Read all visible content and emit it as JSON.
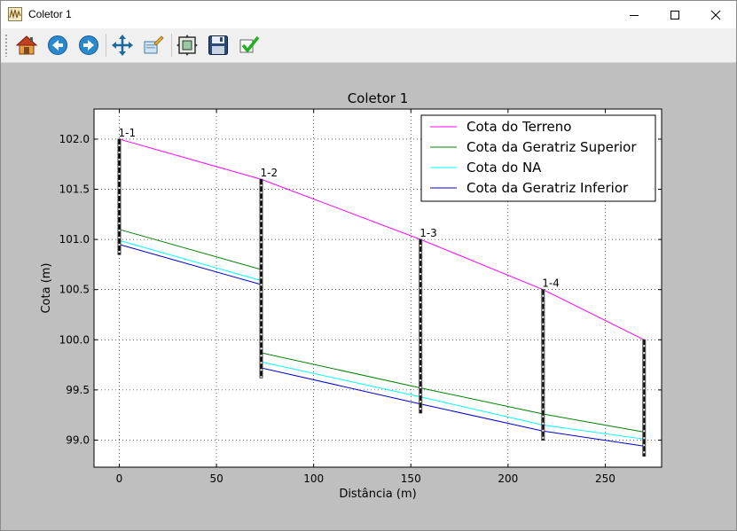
{
  "window": {
    "title": "Coletor 1",
    "icon": "chart-app-icon",
    "controls": [
      "minimize-icon",
      "maximize-icon",
      "close-icon"
    ]
  },
  "toolbar": {
    "buttons": [
      {
        "name": "home-button",
        "icon": "home-icon"
      },
      {
        "name": "back-button",
        "icon": "back-arrow-icon"
      },
      {
        "name": "forward-button",
        "icon": "forward-arrow-icon"
      },
      {
        "name": "pan-button",
        "icon": "pan-move-icon"
      },
      {
        "name": "zoom-button",
        "icon": "zoom-rectangle-icon"
      },
      {
        "name": "configure-subplots-button",
        "icon": "subplots-icon"
      },
      {
        "name": "save-button",
        "icon": "save-disk-icon"
      },
      {
        "name": "edit-parameters-button",
        "icon": "checkmark-icon"
      }
    ]
  },
  "colors": {
    "terreno": "#ff00ff",
    "geratriz_superior": "#008000",
    "na": "#00ffff",
    "geratriz_inferior": "#0000cc",
    "background": "#bfbfbf"
  },
  "chart_data": {
    "type": "line",
    "title": "Coletor 1",
    "xlabel": "Distância (m)",
    "ylabel": "Cota (m)",
    "xlim": [
      -13,
      279
    ],
    "ylim": [
      98.73,
      102.3
    ],
    "xticks": [
      0,
      50,
      100,
      150,
      200,
      250
    ],
    "xtick_labels": [
      "0",
      "50",
      "100",
      "150",
      "200",
      "250"
    ],
    "yticks": [
      99.0,
      99.5,
      100.0,
      100.5,
      101.0,
      101.5,
      102.0
    ],
    "ytick_labels": [
      "99.0",
      "99.5",
      "100.0",
      "100.5",
      "101.0",
      "101.5",
      "102.0"
    ],
    "grid": true,
    "legend_position": "top-right",
    "series": [
      {
        "name": "Cota do Terreno",
        "color": "#ff00ff",
        "points": [
          [
            0,
            102.0
          ],
          [
            73,
            101.6
          ],
          [
            155,
            101.0
          ],
          [
            218,
            100.5
          ],
          [
            270,
            100.0
          ]
        ]
      },
      {
        "name": "Cota da Geratriz Superior",
        "color": "#008000",
        "points": [
          [
            0,
            101.1
          ],
          [
            73,
            100.7
          ],
          [
            73,
            99.87
          ],
          [
            155,
            99.52
          ],
          [
            218,
            99.26
          ],
          [
            270,
            99.08
          ]
        ]
      },
      {
        "name": "Cota do NA",
        "color": "#00ffff",
        "points": [
          [
            0,
            100.99
          ],
          [
            73,
            100.59
          ],
          [
            73,
            99.78
          ],
          [
            155,
            99.43
          ],
          [
            218,
            99.15
          ],
          [
            270,
            99.01
          ]
        ]
      },
      {
        "name": "Cota da Geratriz Inferior",
        "color": "#0000cc",
        "points": [
          [
            0,
            100.95
          ],
          [
            73,
            100.55
          ],
          [
            73,
            99.72
          ],
          [
            155,
            99.36
          ],
          [
            218,
            99.09
          ],
          [
            270,
            98.94
          ]
        ]
      }
    ],
    "manholes": [
      {
        "label": "1-1",
        "x": 0,
        "top": 102.0,
        "bottom": 100.85
      },
      {
        "label": "1-2",
        "x": 73,
        "top": 101.6,
        "bottom": 99.62
      },
      {
        "label": "1-3",
        "x": 155,
        "top": 101.0,
        "bottom": 99.27
      },
      {
        "label": "1-4",
        "x": 218,
        "top": 100.5,
        "bottom": 99.0
      },
      {
        "label": "",
        "x": 270,
        "top": 100.0,
        "bottom": 98.84
      }
    ]
  }
}
